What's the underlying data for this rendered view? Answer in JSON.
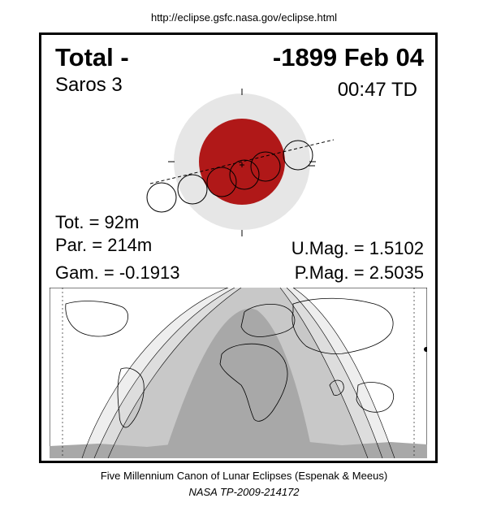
{
  "header": {
    "url": "http://eclipse.gsfc.nasa.gov/eclipse.html"
  },
  "eclipse": {
    "type_label": "Total  -",
    "date": "-1899 Feb 04",
    "saros_label": "Saros   3",
    "time": "00:47 TD",
    "totality": "Tot. =  92m",
    "partial": "Par. = 214m",
    "gamma": "Gam. = -0.1913",
    "umbral_mag": "U.Mag. = 1.5102",
    "penumbral_mag": "P.Mag. = 2.5035"
  },
  "colors": {
    "umbra": "#b01818",
    "penumbra": "#e6e6e6",
    "map_shade_levels": [
      "#ffffff",
      "#eeeeee",
      "#dddddd",
      "#c8c8c8",
      "#a8a8a8"
    ]
  },
  "footer": {
    "canon": "Five Millennium Canon of Lunar Eclipses (Espenak & Meeus)",
    "publication": "NASA TP-2009-214172"
  }
}
